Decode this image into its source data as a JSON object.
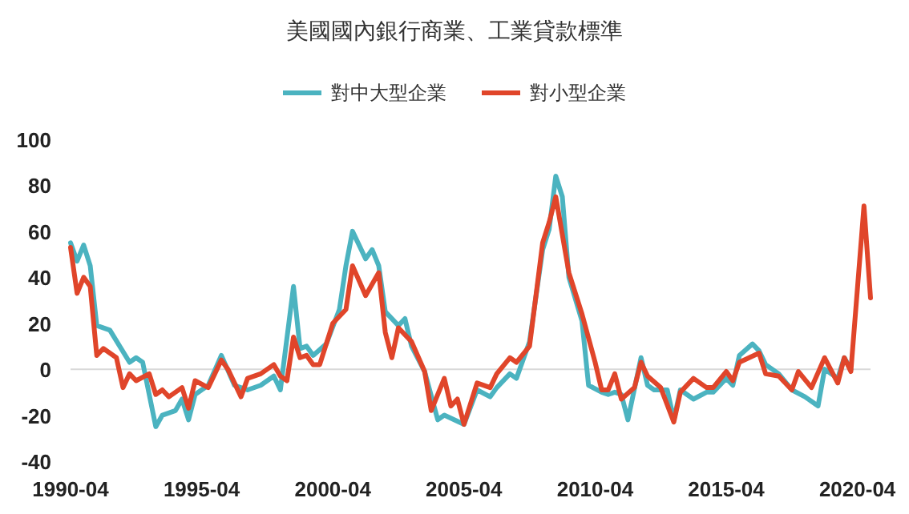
{
  "chart_data": {
    "type": "line",
    "title": "美國國內銀行商業、工業貸款標準",
    "legend": "top",
    "xlim": [
      "1990-04",
      "2020-10"
    ],
    "xticks": [
      "1990-04",
      "1995-04",
      "2000-04",
      "2005-04",
      "2010-04",
      "2015-04",
      "2020-04"
    ],
    "ylim": [
      -40,
      100
    ],
    "yticks": [
      -40,
      -20,
      0,
      20,
      40,
      60,
      80,
      100
    ],
    "ref_lines": [
      {
        "axis": "y",
        "value": 0,
        "color": "#d9d9d9"
      }
    ],
    "series": [
      {
        "name": "對中大型企業",
        "color": "#4bb3c0",
        "x": [
          "1990-04",
          "1990-07",
          "1990-10",
          "1991-01",
          "1991-04",
          "1991-10",
          "1992-07",
          "1992-10",
          "1993-01",
          "1993-07",
          "1993-10",
          "1994-04",
          "1994-07",
          "1994-10",
          "1995-01",
          "1995-07",
          "1996-01",
          "1996-07",
          "1997-01",
          "1997-07",
          "1998-01",
          "1998-04",
          "1998-10",
          "1999-01",
          "1999-04",
          "1999-07",
          "2000-01",
          "2000-07",
          "2000-10",
          "2001-01",
          "2001-07",
          "2001-10",
          "2002-01",
          "2002-04",
          "2002-10",
          "2003-01",
          "2003-04",
          "2003-10",
          "2004-04",
          "2004-07",
          "2005-04",
          "2005-10",
          "2006-04",
          "2006-07",
          "2007-01",
          "2007-04",
          "2007-10",
          "2008-04",
          "2008-07",
          "2008-10",
          "2009-01",
          "2009-04",
          "2009-10",
          "2010-01",
          "2010-07",
          "2010-10",
          "2011-01",
          "2011-04",
          "2011-07",
          "2012-01",
          "2012-04",
          "2012-07",
          "2013-01",
          "2013-04",
          "2013-07",
          "2014-01",
          "2014-07",
          "2014-10",
          "2015-04",
          "2015-07",
          "2015-10",
          "2016-04",
          "2016-07",
          "2016-10",
          "2017-04",
          "2017-10",
          "2018-04",
          "2018-10",
          "2019-01",
          "2019-07",
          "2019-10",
          "2020-01"
        ],
        "values": [
          55,
          47,
          54,
          45,
          19,
          17,
          3,
          5,
          3,
          -25,
          -20,
          -18,
          -13,
          -22,
          -11,
          -7,
          6,
          -7,
          -9,
          -7,
          -3,
          -9,
          36,
          9,
          10,
          6,
          11,
          26,
          45,
          60,
          48,
          52,
          45,
          25,
          19,
          22,
          10,
          -1,
          -22,
          -20,
          -24,
          -9,
          -12,
          -8,
          -2,
          -4,
          12,
          52,
          61,
          84,
          75,
          40,
          21,
          -7,
          -10,
          -11,
          -10,
          -11,
          -22,
          5,
          -7,
          -9,
          -9,
          -22,
          -9,
          -13,
          -10,
          -10,
          -4,
          -7,
          6,
          11,
          8,
          2,
          -2,
          -9,
          -12,
          -16,
          0,
          -4,
          5,
          0
        ]
      },
      {
        "name": "對小型企業",
        "color": "#e0452a",
        "x": [
          "1990-04",
          "1990-07",
          "1990-10",
          "1991-01",
          "1991-04",
          "1991-07",
          "1992-01",
          "1992-04",
          "1992-07",
          "1992-10",
          "1993-04",
          "1993-07",
          "1993-10",
          "1994-01",
          "1994-07",
          "1994-10",
          "1995-01",
          "1995-07",
          "1995-10",
          "1996-01",
          "1996-04",
          "1996-10",
          "1997-01",
          "1997-07",
          "1998-01",
          "1998-04",
          "1998-07",
          "1998-10",
          "1999-01",
          "1999-04",
          "1999-07",
          "1999-10",
          "2000-04",
          "2000-10",
          "2001-01",
          "2001-07",
          "2002-01",
          "2002-04",
          "2002-07",
          "2002-10",
          "2003-04",
          "2003-10",
          "2004-01",
          "2004-07",
          "2004-10",
          "2005-01",
          "2005-04",
          "2005-10",
          "2006-04",
          "2006-07",
          "2007-01",
          "2007-04",
          "2007-10",
          "2008-04",
          "2008-07",
          "2008-10",
          "2009-04",
          "2009-10",
          "2010-04",
          "2010-07",
          "2010-10",
          "2011-01",
          "2011-04",
          "2011-10",
          "2012-01",
          "2012-04",
          "2012-10",
          "2013-04",
          "2013-07",
          "2014-01",
          "2014-07",
          "2014-10",
          "2015-04",
          "2015-07",
          "2015-10",
          "2016-07",
          "2016-10",
          "2017-04",
          "2017-10",
          "2018-01",
          "2018-07",
          "2019-01",
          "2019-07",
          "2019-10",
          "2020-01",
          "2020-04",
          "2020-07",
          "2020-10"
        ],
        "values": [
          53,
          33,
          40,
          36,
          6,
          9,
          5,
          -8,
          -2,
          -5,
          -2,
          -11,
          -9,
          -12,
          -8,
          -17,
          -5,
          -8,
          -2,
          4,
          0,
          -12,
          -4,
          -2,
          2,
          -3,
          -5,
          14,
          5,
          6,
          2,
          2,
          20,
          26,
          45,
          32,
          42,
          16,
          5,
          18,
          12,
          -1,
          -18,
          -4,
          -16,
          -13,
          -24,
          -6,
          -8,
          -2,
          5,
          3,
          10,
          55,
          64,
          75,
          42,
          24,
          3,
          -9,
          -9,
          -2,
          -13,
          -8,
          3,
          -3,
          -8,
          -23,
          -10,
          -4,
          -8,
          -8,
          -1,
          -5,
          3,
          7,
          -2,
          -3,
          -9,
          -1,
          -8,
          5,
          -6,
          5,
          -1,
          35,
          71,
          31
        ]
      }
    ]
  }
}
